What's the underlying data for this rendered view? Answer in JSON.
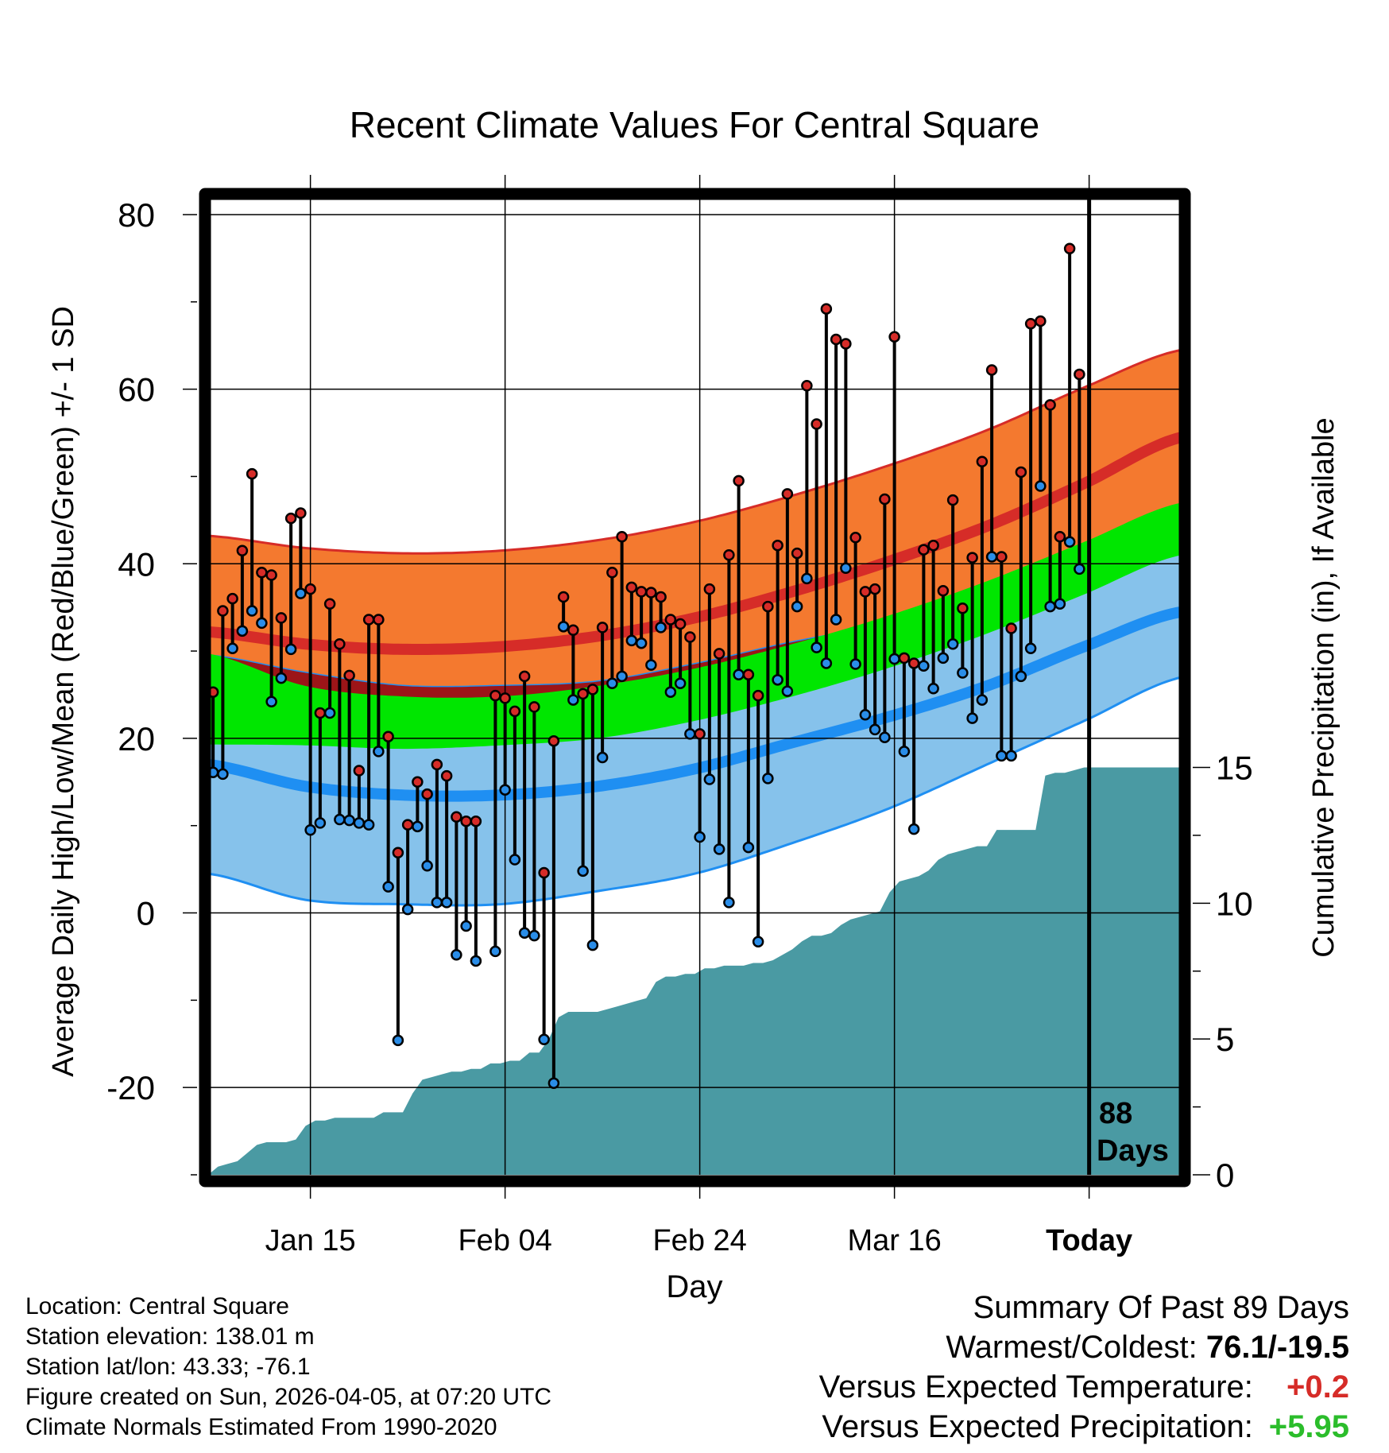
{
  "chart_data": {
    "type": "line",
    "title": "Recent Climate Values For Central Square",
    "xlabel": "Day",
    "ylabel": "Average Daily High/Low/Mean (Red/Blue/Green) +/- 1 SD",
    "y2label": "Cumulative Precipitation (in), If Available",
    "ylim": [
      -30,
      82
    ],
    "y2lim": [
      0,
      36
    ],
    "xlim": [
      0,
      100
    ],
    "ytick_labels": [
      "-20",
      "0",
      "20",
      "40",
      "60",
      "80"
    ],
    "y2tick_labels": [
      "0",
      "5",
      "10",
      "15"
    ],
    "xtick_labels": [
      "Jan 15",
      "Feb 04",
      "Feb 24",
      "Mar 16",
      "Today"
    ],
    "xtick_positions": [
      10.5,
      30.5,
      50.5,
      70.5,
      90.5
    ],
    "today_day": 90.5,
    "days_label": [
      "88",
      "Days"
    ],
    "normals": {
      "days": [
        0,
        10,
        20,
        30,
        40,
        50,
        60,
        70,
        80,
        90,
        100
      ],
      "high_mean": [
        32.2,
        30.8,
        30.2,
        30.5,
        31.7,
        33.8,
        36.8,
        40.3,
        44.3,
        49.2,
        54.5
      ],
      "high_sd": [
        11.0,
        11.0,
        11.0,
        11.0,
        11.0,
        11.0,
        11.0,
        11.0,
        11.0,
        11.0,
        10.0
      ],
      "low_mean": [
        17.0,
        14.5,
        13.5,
        13.5,
        14.5,
        16.5,
        19.5,
        22.5,
        26.0,
        30.5,
        34.5
      ],
      "low_sd": [
        12.5,
        13.0,
        12.5,
        12.5,
        12.0,
        12.0,
        11.5,
        10.5,
        9.0,
        8.5,
        7.5
      ],
      "mean_mean": [
        24.5,
        22.6,
        21.8,
        22.0,
        23.0,
        25.0,
        27.8,
        31.1,
        35.0,
        39.5,
        44.0
      ],
      "mean_sd": [
        5.2,
        3.4,
        3.0,
        2.8,
        3.0,
        3.0,
        3.0,
        3.0,
        3.0,
        3.0,
        3.0
      ]
    },
    "observed": [
      {
        "day": 0.5,
        "high": 25.3,
        "low": 16.1
      },
      {
        "day": 1.5,
        "high": 34.6,
        "low": 15.9
      },
      {
        "day": 2.5,
        "high": 36.0,
        "low": 30.3
      },
      {
        "day": 3.5,
        "high": 41.5,
        "low": 32.3
      },
      {
        "day": 4.5,
        "high": 50.3,
        "low": 34.6
      },
      {
        "day": 5.5,
        "high": 39.0,
        "low": 33.2
      },
      {
        "day": 6.5,
        "high": 38.7,
        "low": 24.2
      },
      {
        "day": 7.5,
        "high": 33.8,
        "low": 26.9
      },
      {
        "day": 8.5,
        "high": 45.2,
        "low": 30.2
      },
      {
        "day": 9.5,
        "high": 45.8,
        "low": 36.6
      },
      {
        "day": 10.5,
        "high": 37.1,
        "low": 9.5
      },
      {
        "day": 11.5,
        "high": 22.9,
        "low": 10.3
      },
      {
        "day": 12.5,
        "high": 35.4,
        "low": 22.9
      },
      {
        "day": 13.5,
        "high": 30.8,
        "low": 10.7
      },
      {
        "day": 14.5,
        "high": 27.2,
        "low": 10.6
      },
      {
        "day": 15.5,
        "high": 16.3,
        "low": 10.3
      },
      {
        "day": 16.5,
        "high": 33.6,
        "low": 10.1
      },
      {
        "day": 17.5,
        "high": 33.6,
        "low": 18.5
      },
      {
        "day": 18.5,
        "high": 20.2,
        "low": 3.0
      },
      {
        "day": 19.5,
        "high": 6.9,
        "low": -14.6
      },
      {
        "day": 20.5,
        "high": 10.1,
        "low": 0.4
      },
      {
        "day": 21.5,
        "high": 15.0,
        "low": 9.9
      },
      {
        "day": 22.5,
        "high": 13.6,
        "low": 5.4
      },
      {
        "day": 23.5,
        "high": 17.0,
        "low": 1.2
      },
      {
        "day": 24.5,
        "high": 15.7,
        "low": 1.2
      },
      {
        "day": 25.5,
        "high": 11.0,
        "low": -4.8
      },
      {
        "day": 26.5,
        "high": 10.5,
        "low": -1.5
      },
      {
        "day": 27.5,
        "high": 10.5,
        "low": -5.5
      },
      {
        "day": 29.5,
        "high": 24.9,
        "low": -4.4
      },
      {
        "day": 30.5,
        "high": 24.6,
        "low": 14.1
      },
      {
        "day": 31.5,
        "high": 23.1,
        "low": 6.1
      },
      {
        "day": 32.5,
        "high": 27.1,
        "low": -2.3
      },
      {
        "day": 33.5,
        "high": 23.6,
        "low": -2.6
      },
      {
        "day": 34.5,
        "high": 4.6,
        "low": -14.5
      },
      {
        "day": 35.5,
        "high": 19.7,
        "low": -19.5
      },
      {
        "day": 36.5,
        "high": 36.2,
        "low": 32.8
      },
      {
        "day": 37.5,
        "high": 32.4,
        "low": 24.4
      },
      {
        "day": 38.5,
        "high": 25.1,
        "low": 4.8
      },
      {
        "day": 39.5,
        "high": 25.6,
        "low": -3.7
      },
      {
        "day": 40.5,
        "high": 32.7,
        "low": 17.8
      },
      {
        "day": 41.5,
        "high": 39.0,
        "low": 26.3
      },
      {
        "day": 42.5,
        "high": 43.1,
        "low": 27.1
      },
      {
        "day": 43.5,
        "high": 37.3,
        "low": 31.2
      },
      {
        "day": 44.5,
        "high": 36.8,
        "low": 30.9
      },
      {
        "day": 45.5,
        "high": 36.7,
        "low": 28.4
      },
      {
        "day": 46.5,
        "high": 36.2,
        "low": 32.7
      },
      {
        "day": 47.5,
        "high": 33.6,
        "low": 25.3
      },
      {
        "day": 48.5,
        "high": 33.1,
        "low": 26.3
      },
      {
        "day": 49.5,
        "high": 31.6,
        "low": 20.5
      },
      {
        "day": 50.5,
        "high": 20.5,
        "low": 8.7
      },
      {
        "day": 51.5,
        "high": 37.1,
        "low": 15.3
      },
      {
        "day": 52.5,
        "high": 29.7,
        "low": 7.3
      },
      {
        "day": 53.5,
        "high": 41.0,
        "low": 1.2
      },
      {
        "day": 54.5,
        "high": 49.5,
        "low": 27.3
      },
      {
        "day": 55.5,
        "high": 27.3,
        "low": 7.5
      },
      {
        "day": 56.5,
        "high": 24.9,
        "low": -3.3
      },
      {
        "day": 57.5,
        "high": 35.1,
        "low": 15.4
      },
      {
        "day": 58.5,
        "high": 42.1,
        "low": 26.7
      },
      {
        "day": 59.5,
        "high": 48.0,
        "low": 25.4
      },
      {
        "day": 60.5,
        "high": 41.2,
        "low": 35.1
      },
      {
        "day": 61.5,
        "high": 60.4,
        "low": 38.3
      },
      {
        "day": 62.5,
        "high": 56.0,
        "low": 30.4
      },
      {
        "day": 63.5,
        "high": 69.2,
        "low": 28.6
      },
      {
        "day": 64.5,
        "high": 65.7,
        "low": 33.6
      },
      {
        "day": 65.5,
        "high": 65.2,
        "low": 39.5
      },
      {
        "day": 66.5,
        "high": 43.0,
        "low": 28.5
      },
      {
        "day": 67.5,
        "high": 36.8,
        "low": 22.7
      },
      {
        "day": 68.5,
        "high": 37.1,
        "low": 21.0
      },
      {
        "day": 69.5,
        "high": 47.4,
        "low": 20.1
      },
      {
        "day": 70.5,
        "high": 66.0,
        "low": 29.1
      },
      {
        "day": 71.5,
        "high": 29.2,
        "low": 18.5
      },
      {
        "day": 72.5,
        "high": 28.6,
        "low": 9.6
      },
      {
        "day": 73.5,
        "high": 41.6,
        "low": 28.3
      },
      {
        "day": 74.5,
        "high": 42.1,
        "low": 25.7
      },
      {
        "day": 75.5,
        "high": 36.9,
        "low": 29.2
      },
      {
        "day": 76.5,
        "high": 47.3,
        "low": 30.8
      },
      {
        "day": 77.5,
        "high": 34.9,
        "low": 27.5
      },
      {
        "day": 78.5,
        "high": 40.7,
        "low": 22.3
      },
      {
        "day": 79.5,
        "high": 51.7,
        "low": 24.4
      },
      {
        "day": 80.5,
        "high": 62.2,
        "low": 40.8
      },
      {
        "day": 81.5,
        "high": 40.8,
        "low": 18.0
      },
      {
        "day": 82.5,
        "high": 32.6,
        "low": 18.0
      },
      {
        "day": 83.5,
        "high": 50.5,
        "low": 27.1
      },
      {
        "day": 84.5,
        "high": 67.5,
        "low": 30.3
      },
      {
        "day": 85.5,
        "high": 67.8,
        "low": 48.9
      },
      {
        "day": 86.5,
        "high": 58.2,
        "low": 35.1
      },
      {
        "day": 87.5,
        "high": 43.1,
        "low": 35.4
      },
      {
        "day": 88.5,
        "high": 76.1,
        "low": 42.5
      },
      {
        "day": 89.5,
        "high": 61.7,
        "low": 39.4
      }
    ],
    "precip": {
      "day": [
        0,
        1,
        2,
        3,
        4,
        5,
        6,
        7,
        8,
        9,
        10,
        11,
        12,
        13,
        14,
        15,
        16,
        17,
        18,
        19,
        20,
        21,
        22,
        23,
        24,
        25,
        26,
        27,
        28,
        29,
        30,
        31,
        32,
        33,
        34,
        35,
        36,
        37,
        38,
        39,
        40,
        41,
        42,
        43,
        44,
        45,
        46,
        47,
        48,
        49,
        50,
        51,
        52,
        53,
        54,
        55,
        56,
        57,
        58,
        59,
        60,
        61,
        62,
        63,
        64,
        65,
        66,
        67,
        68,
        69,
        70,
        71,
        72,
        73,
        74,
        75,
        76,
        77,
        78,
        79,
        80,
        81,
        82,
        83,
        84,
        85,
        86,
        87,
        88,
        89,
        90,
        100
      ],
      "total": [
        0.0,
        0.3,
        0.4,
        0.5,
        0.8,
        1.1,
        1.2,
        1.2,
        1.2,
        1.3,
        1.8,
        2.0,
        2.0,
        2.1,
        2.1,
        2.1,
        2.1,
        2.1,
        2.3,
        2.3,
        2.3,
        3.0,
        3.5,
        3.6,
        3.7,
        3.8,
        3.8,
        3.9,
        3.9,
        4.1,
        4.1,
        4.2,
        4.2,
        4.5,
        4.5,
        5.0,
        5.8,
        6.0,
        6.0,
        6.0,
        6.0,
        6.1,
        6.2,
        6.3,
        6.4,
        6.5,
        7.1,
        7.3,
        7.3,
        7.4,
        7.4,
        7.6,
        7.6,
        7.7,
        7.7,
        7.7,
        7.8,
        7.8,
        7.9,
        8.1,
        8.3,
        8.6,
        8.8,
        8.8,
        8.9,
        9.2,
        9.4,
        9.5,
        9.6,
        9.7,
        10.4,
        10.8,
        10.9,
        11.0,
        11.2,
        11.6,
        11.8,
        11.9,
        12.0,
        12.1,
        12.1,
        12.7,
        12.7,
        12.7,
        12.7,
        12.7,
        14.7,
        14.8,
        14.8,
        14.9,
        15.0,
        15.0
      ]
    }
  },
  "metadata": {
    "lines": [
      "Location: Central Square",
      "Station elevation: 138.01 m",
      "Station lat/lon: 43.33; -76.1",
      "Figure created on Sun, 2026-04-05, at 07:20 UTC",
      "Climate Normals Estimated From 1990-2020"
    ]
  },
  "summary": {
    "title": "Summary Of Past 89 Days",
    "warmest_coldest_label": "Warmest/Coldest:",
    "warmest_coldest_value": "76.1/-19.5",
    "temp_label": "Versus Expected Temperature:",
    "temp_value": "+0.2",
    "precip_label": "Versus Expected Precipitation:",
    "precip_value": "+5.95"
  },
  "colors": {
    "high_band": "#f4792f",
    "high_line": "#d62c28",
    "low_band": "#86c2eb",
    "low_line": "#1f8ff2",
    "overlap_band": "#9c1518",
    "mean_band": "#00e600",
    "precip_fill": "#4a9aa3",
    "high_marker": "#d62c28",
    "low_marker": "#2a8de8",
    "frame": "#000000"
  }
}
